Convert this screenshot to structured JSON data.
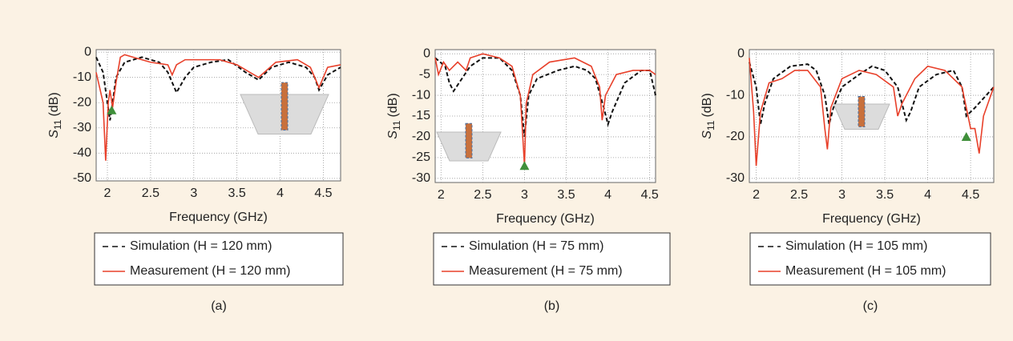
{
  "chart_data": [
    {
      "type": "line",
      "caption": "(a)",
      "xlabel": "Frequency (GHz)",
      "ylabel": {
        "symbol": "S",
        "subscript": "11",
        "unit": "(dB)"
      },
      "xlim": [
        1.87,
        4.7
      ],
      "ylim": [
        -51,
        1
      ],
      "xticks": [
        2,
        2.5,
        3,
        3.5,
        4,
        4.5
      ],
      "yticks": [
        0,
        -10,
        -20,
        -30,
        -40,
        -50
      ],
      "grid": true,
      "series": [
        {
          "name": "Simulation (H = 120 mm)",
          "color": "#111111",
          "line_style": "dashed",
          "x": [
            1.87,
            1.95,
            2.0,
            2.03,
            2.06,
            2.1,
            2.2,
            2.4,
            2.6,
            2.7,
            2.8,
            2.9,
            3.0,
            3.2,
            3.4,
            3.6,
            3.75,
            3.9,
            4.1,
            4.3,
            4.4,
            4.45,
            4.55,
            4.7
          ],
          "values": [
            -2,
            -8,
            -20,
            -27,
            -20,
            -10,
            -4,
            -2,
            -4,
            -8,
            -16,
            -10,
            -6,
            -4,
            -3,
            -8,
            -11,
            -6,
            -4,
            -6,
            -10,
            -15,
            -9,
            -6
          ]
        },
        {
          "name": "Measurement (H = 120 mm)",
          "color": "#e8402a",
          "line_style": "solid",
          "x": [
            1.87,
            1.95,
            1.98,
            2.01,
            2.03,
            2.06,
            2.1,
            2.15,
            2.2,
            2.3,
            2.5,
            2.7,
            2.75,
            2.8,
            2.9,
            3.3,
            3.5,
            3.65,
            3.75,
            3.85,
            3.95,
            4.2,
            4.35,
            4.45,
            4.55,
            4.7
          ],
          "values": [
            -8,
            -20,
            -43,
            -20,
            -15,
            -22,
            -12,
            -2,
            -1,
            -2,
            -4,
            -5,
            -9,
            -5,
            -3,
            -3,
            -5,
            -8,
            -10,
            -7,
            -4,
            -3,
            -6,
            -14,
            -6,
            -5
          ]
        }
      ],
      "marker": {
        "x": 2.05,
        "y": -23,
        "color": "#3f8f3a"
      }
    },
    {
      "type": "line",
      "caption": "(b)",
      "xlabel": "Frequency (GHz)",
      "ylabel": {
        "symbol": "S",
        "subscript": "11",
        "unit": "(dB)"
      },
      "xlim": [
        1.93,
        4.57
      ],
      "ylim": [
        -31,
        1
      ],
      "xticks": [
        2,
        2.5,
        3,
        3.5,
        4,
        4.5
      ],
      "yticks": [
        0,
        -5,
        -10,
        -15,
        -20,
        -25,
        -30
      ],
      "grid": true,
      "series": [
        {
          "name": "Simulation (H = 75 mm)",
          "color": "#111111",
          "line_style": "dashed",
          "x": [
            1.93,
            2.05,
            2.1,
            2.15,
            2.25,
            2.35,
            2.5,
            2.7,
            2.85,
            2.95,
            3.0,
            3.05,
            3.15,
            3.4,
            3.6,
            3.75,
            3.85,
            3.95,
            4.0,
            4.05,
            4.2,
            4.4,
            4.5,
            4.57
          ],
          "values": [
            -1,
            -3,
            -7,
            -9,
            -6,
            -3,
            -1,
            -1,
            -4,
            -10,
            -20,
            -10,
            -6,
            -4,
            -3,
            -4,
            -6,
            -13,
            -17,
            -14,
            -7,
            -4,
            -4,
            -10
          ]
        },
        {
          "name": "Measurement (H = 75 mm)",
          "color": "#e8402a",
          "line_style": "solid",
          "x": [
            1.93,
            1.97,
            2.03,
            2.1,
            2.2,
            2.3,
            2.35,
            2.5,
            2.7,
            2.85,
            2.95,
            3.0,
            3.02,
            3.1,
            3.3,
            3.6,
            3.8,
            3.9,
            3.93,
            3.97,
            4.1,
            4.3,
            4.5,
            4.57
          ],
          "values": [
            -1,
            -5,
            -2,
            -4,
            -2,
            -4,
            -1,
            0,
            -1,
            -3,
            -10,
            -27,
            -12,
            -5,
            -2,
            -1,
            -3,
            -8,
            -16,
            -10,
            -5,
            -4,
            -4,
            -5
          ]
        }
      ],
      "marker": {
        "x": 3.0,
        "y": -27,
        "color": "#3f8f3a"
      }
    },
    {
      "type": "line",
      "caption": "(c)",
      "xlabel": "Frequency (GHz)",
      "ylabel": {
        "symbol": "S",
        "subscript": "11",
        "unit": "(dB)"
      },
      "xlim": [
        1.92,
        4.77
      ],
      "ylim": [
        -31,
        1
      ],
      "xticks": [
        2,
        2.5,
        3,
        3.5,
        4,
        4.5
      ],
      "yticks": [
        0,
        -10,
        -20,
        -30
      ],
      "grid": true,
      "series": [
        {
          "name": "Simulation (H = 105 mm)",
          "color": "#111111",
          "line_style": "dashed",
          "x": [
            1.92,
            2.0,
            2.05,
            2.1,
            2.2,
            2.4,
            2.6,
            2.7,
            2.8,
            2.85,
            2.9,
            3.0,
            3.2,
            3.35,
            3.5,
            3.65,
            3.75,
            3.8,
            3.9,
            4.1,
            4.3,
            4.4,
            4.45,
            4.55,
            4.77
          ],
          "values": [
            -2,
            -8,
            -17,
            -12,
            -6,
            -3,
            -2.5,
            -4,
            -10,
            -17,
            -13,
            -8,
            -5,
            -3,
            -4,
            -8,
            -16,
            -14,
            -8,
            -5,
            -4,
            -8,
            -15,
            -13,
            -8
          ]
        },
        {
          "name": "Measurement (H = 105 mm)",
          "color": "#e8402a",
          "line_style": "solid",
          "x": [
            1.92,
            1.97,
            2.0,
            2.05,
            2.15,
            2.3,
            2.45,
            2.6,
            2.75,
            2.8,
            2.83,
            2.87,
            3.0,
            3.2,
            3.4,
            3.6,
            3.65,
            3.7,
            3.85,
            4.0,
            4.2,
            4.4,
            4.5,
            4.55,
            4.6,
            4.65,
            4.77
          ],
          "values": [
            -1,
            -14,
            -27,
            -14,
            -7,
            -6,
            -4,
            -4,
            -8,
            -18,
            -23,
            -13,
            -6,
            -4,
            -5,
            -8,
            -15,
            -12,
            -6,
            -3,
            -4,
            -8,
            -18,
            -18,
            -24,
            -15,
            -8
          ]
        }
      ],
      "marker": {
        "x": 4.45,
        "y": -20,
        "color": "#3f8f3a"
      }
    }
  ]
}
